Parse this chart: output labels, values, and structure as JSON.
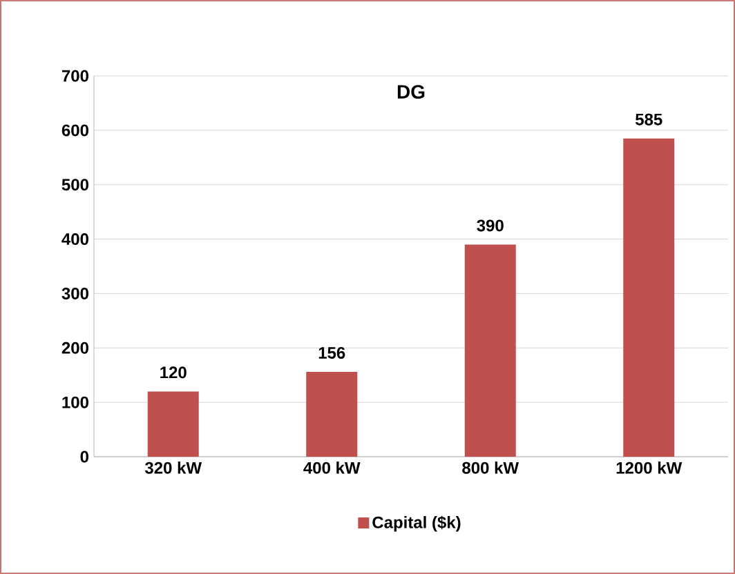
{
  "chart_data": {
    "type": "bar",
    "title": "DG",
    "categories": [
      "320 kW",
      "400 kW",
      "800 kW",
      "1200 kW"
    ],
    "series": [
      {
        "name": "Capital ($k)",
        "color": "#c0504d",
        "values": [
          120,
          156,
          390,
          585
        ]
      }
    ],
    "ylim": [
      0,
      700
    ],
    "yticks": [
      0,
      100,
      200,
      300,
      400,
      500,
      600,
      700
    ],
    "grid": "y",
    "legend": "bottom",
    "data_labels": true
  }
}
